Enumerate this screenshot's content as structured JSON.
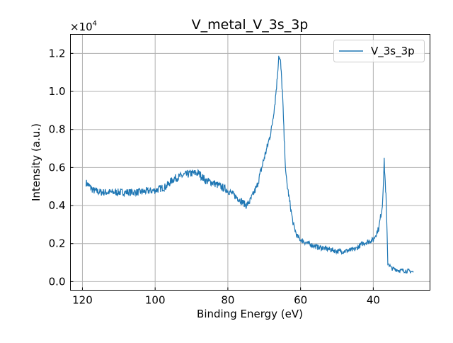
{
  "chart_data": {
    "type": "line",
    "title": "V_metal_V_3s_3p",
    "xlabel": "Binding Energy (eV)",
    "ylabel": "Intensity (a.u.)",
    "y_offset_text": "×10",
    "y_offset_exponent": "4",
    "xlim": [
      123.3,
      24.4
    ],
    "ylim": [
      -0.045,
      1.3
    ],
    "x_reversed": true,
    "grid": true,
    "x_ticks": [
      120,
      100,
      80,
      60,
      40
    ],
    "x_tick_labels": [
      "120",
      "100",
      "80",
      "60",
      "40"
    ],
    "y_ticks": [
      0.0,
      0.2,
      0.4,
      0.6,
      0.8,
      1.0,
      1.2
    ],
    "y_tick_labels": [
      "0.0",
      "0.2",
      "0.4",
      "0.6",
      "0.8",
      "1.0",
      "1.2"
    ],
    "legend": {
      "placement": "top-right",
      "entries": [
        "V_3s_3p"
      ]
    },
    "series": [
      {
        "name": "V_3s_3p",
        "color": "#1f77b4",
        "x": [
          119,
          117,
          115,
          110,
          105,
          100,
          97,
          95,
          92,
          90,
          88,
          86,
          84,
          82,
          80,
          78,
          76,
          75,
          74,
          72,
          70,
          69,
          68,
          67,
          66.5,
          66,
          65.5,
          65,
          64.5,
          64,
          63,
          62,
          61,
          60,
          58,
          55,
          52,
          50,
          48,
          45,
          43,
          40,
          38.5,
          37.5,
          37,
          36.5,
          36,
          35,
          33,
          30,
          29
        ],
        "y": [
          0.52,
          0.48,
          0.47,
          0.47,
          0.47,
          0.48,
          0.5,
          0.54,
          0.56,
          0.57,
          0.57,
          0.53,
          0.52,
          0.5,
          0.48,
          0.45,
          0.42,
          0.4,
          0.42,
          0.5,
          0.65,
          0.72,
          0.8,
          0.95,
          1.05,
          1.19,
          1.15,
          1.0,
          0.75,
          0.55,
          0.42,
          0.3,
          0.24,
          0.22,
          0.2,
          0.18,
          0.17,
          0.16,
          0.16,
          0.17,
          0.2,
          0.22,
          0.28,
          0.4,
          0.63,
          0.45,
          0.1,
          0.07,
          0.06,
          0.055,
          0.05
        ]
      }
    ]
  }
}
